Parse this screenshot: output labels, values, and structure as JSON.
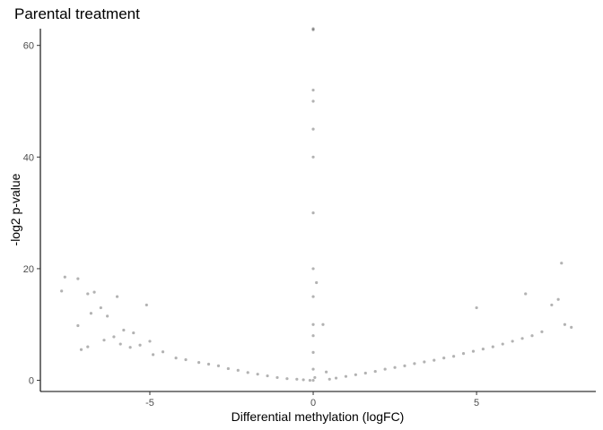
{
  "chart_data": {
    "type": "scatter",
    "title": "Parental treatment",
    "xlabel": "Differential methylation (logFC)",
    "ylabel": "-log2 p-value",
    "xlim": [
      -8.35,
      8.65
    ],
    "ylim": [
      -2.0,
      63.0
    ],
    "x_ticks": [
      -5,
      0,
      5
    ],
    "x_tick_labels": [
      "-5",
      "0",
      "5"
    ],
    "y_ticks": [
      0,
      20,
      40,
      60
    ],
    "y_tick_labels": [
      "0",
      "20",
      "40",
      "60"
    ],
    "grid": false,
    "legend": "none",
    "point_color": "#000000",
    "point_opacity": 0.3,
    "series": [
      {
        "x": [
          -7.7,
          -7.6,
          -7.2,
          -7.2,
          -6.9,
          -6.8,
          -6.7,
          -6.5,
          -6.3,
          -6.0,
          -5.8,
          -5.5,
          -5.1,
          -5.0,
          -7.1,
          -6.9,
          -6.4,
          -6.1,
          -5.9,
          -5.6,
          -5.3,
          -4.9,
          -4.6,
          -4.2,
          -3.9,
          -3.5,
          -3.2,
          -2.9,
          -2.6,
          -2.3,
          -2.0,
          -1.7,
          -1.4,
          -1.1,
          -0.8,
          -0.5,
          -0.3,
          -0.1,
          0.0,
          0.0,
          0.0,
          0.0,
          0.0,
          0.0,
          0.0,
          0.0,
          0.0,
          0.0,
          0.0,
          0.0,
          0.0,
          0.0,
          0.05,
          0.1,
          0.3,
          0.4,
          0.5,
          0.7,
          1.0,
          1.3,
          1.6,
          1.9,
          2.2,
          2.5,
          2.8,
          3.1,
          3.4,
          3.7,
          4.0,
          4.3,
          4.6,
          4.9,
          5.2,
          5.5,
          5.8,
          6.1,
          6.4,
          6.7,
          7.0,
          7.3,
          7.5,
          7.6,
          7.9,
          5.0,
          6.5,
          7.7
        ],
        "y": [
          16.0,
          18.5,
          18.2,
          9.8,
          15.5,
          12.0,
          15.8,
          13.0,
          11.5,
          15.0,
          9.0,
          8.5,
          13.5,
          7.0,
          5.5,
          6.0,
          7.2,
          7.8,
          6.5,
          5.9,
          6.3,
          4.6,
          5.1,
          4.0,
          3.7,
          3.2,
          2.9,
          2.6,
          2.1,
          1.8,
          1.4,
          1.1,
          0.8,
          0.5,
          0.3,
          0.2,
          0.1,
          0.0,
          0.0,
          2.0,
          5.0,
          8.0,
          10.0,
          15.0,
          20.0,
          30.0,
          40.0,
          45.0,
          50.0,
          52.0,
          62.8,
          63.0,
          0.5,
          17.5,
          10.0,
          1.5,
          0.2,
          0.4,
          0.7,
          1.0,
          1.3,
          1.6,
          2.0,
          2.3,
          2.6,
          3.0,
          3.3,
          3.6,
          4.0,
          4.3,
          4.8,
          5.2,
          5.6,
          6.0,
          6.5,
          7.0,
          7.5,
          8.0,
          8.7,
          13.5,
          14.5,
          21.0,
          9.5,
          13.0,
          15.5,
          10.0
        ]
      }
    ]
  }
}
